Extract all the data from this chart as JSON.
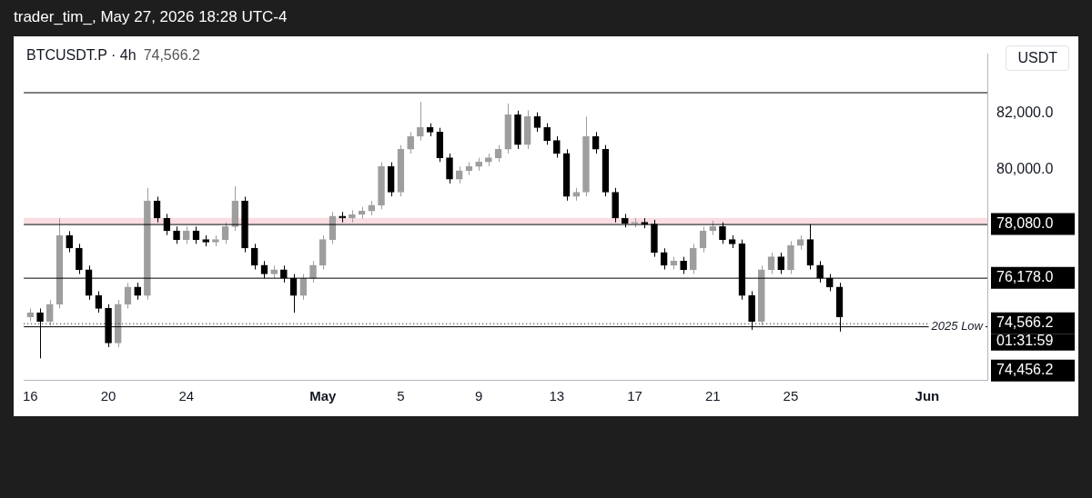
{
  "chart_data": {
    "type": "candlestick",
    "title": "BTCUSDT.P · 4h",
    "subtitle": "74,566.2",
    "ylabel": "USDT",
    "annotations": [
      "trader_tim_, May 27, 2026 18:28 UTC-4",
      {
        "text": "2025 Low",
        "y": 74456.2
      },
      "01:31:59"
    ],
    "x": [
      "2026-04-16T00:00",
      "2026-04-16T12:00",
      "2026-04-17T00:00",
      "2026-04-17T12:00",
      "2026-04-18T00:00",
      "2026-04-18T12:00",
      "2026-04-19T00:00",
      "2026-04-19T12:00",
      "2026-04-20T00:00",
      "2026-04-20T12:00",
      "2026-04-21T00:00",
      "2026-04-21T12:00",
      "2026-04-22T00:00",
      "2026-04-22T12:00",
      "2026-04-23T00:00",
      "2026-04-23T12:00",
      "2026-04-24T00:00",
      "2026-04-24T12:00",
      "2026-04-25T00:00",
      "2026-04-25T12:00",
      "2026-04-26T00:00",
      "2026-04-26T12:00",
      "2026-04-27T00:00",
      "2026-04-27T12:00",
      "2026-04-28T00:00",
      "2026-04-28T12:00",
      "2026-04-29T00:00",
      "2026-04-29T12:00",
      "2026-04-30T00:00",
      "2026-04-30T12:00",
      "2026-05-01T00:00",
      "2026-05-01T12:00",
      "2026-05-02T00:00",
      "2026-05-02T12:00",
      "2026-05-03T00:00",
      "2026-05-03T12:00",
      "2026-05-04T00:00",
      "2026-05-04T12:00",
      "2026-05-05T00:00",
      "2026-05-05T12:00",
      "2026-05-06T00:00",
      "2026-05-06T12:00",
      "2026-05-07T00:00",
      "2026-05-07T12:00",
      "2026-05-08T00:00",
      "2026-05-08T12:00",
      "2026-05-09T00:00",
      "2026-05-09T12:00",
      "2026-05-10T00:00",
      "2026-05-10T12:00",
      "2026-05-11T00:00",
      "2026-05-11T12:00",
      "2026-05-12T00:00",
      "2026-05-12T12:00",
      "2026-05-13T00:00",
      "2026-05-13T12:00",
      "2026-05-14T00:00",
      "2026-05-14T12:00",
      "2026-05-15T00:00",
      "2026-05-15T12:00",
      "2026-05-16T00:00",
      "2026-05-16T12:00",
      "2026-05-17T00:00",
      "2026-05-17T12:00",
      "2026-05-18T00:00",
      "2026-05-18T12:00",
      "2026-05-19T00:00",
      "2026-05-19T12:00",
      "2026-05-20T00:00",
      "2026-05-20T12:00",
      "2026-05-21T00:00",
      "2026-05-21T12:00",
      "2026-05-22T00:00",
      "2026-05-22T12:00",
      "2026-05-23T00:00",
      "2026-05-23T12:00",
      "2026-05-24T00:00",
      "2026-05-24T12:00",
      "2026-05-25T00:00",
      "2026-05-25T12:00",
      "2026-05-26T00:00",
      "2026-05-26T12:00",
      "2026-05-27T00:00",
      "2026-05-27T12:00"
    ],
    "series": [
      {
        "colors": [
          "#9e9e9e",
          "#000000",
          "#9e9e9e",
          "#9e9e9e",
          "#000000",
          "#000000",
          "#000000",
          "#000000",
          "#000000",
          "#9e9e9e",
          "#9e9e9e",
          "#000000",
          "#9e9e9e",
          "#000000",
          "#000000",
          "#000000",
          "#9e9e9e",
          "#000000",
          "#000000",
          "#9e9e9e",
          "#9e9e9e",
          "#9e9e9e",
          "#000000",
          "#000000",
          "#000000",
          "#9e9e9e",
          "#000000",
          "#000000",
          "#9e9e9e",
          "#9e9e9e",
          "#9e9e9e",
          "#9e9e9e",
          "#000000",
          "#9e9e9e",
          "#9e9e9e",
          "#9e9e9e",
          "#9e9e9e",
          "#000000",
          "#9e9e9e",
          "#9e9e9e",
          "#9e9e9e",
          "#000000",
          "#000000",
          "#000000",
          "#9e9e9e",
          "#9e9e9e",
          "#9e9e9e",
          "#9e9e9e",
          "#9e9e9e",
          "#9e9e9e",
          "#000000",
          "#9e9e9e",
          "#000000",
          "#000000",
          "#000000",
          "#000000",
          "#9e9e9e",
          "#9e9e9e",
          "#000000",
          "#000000",
          "#000000",
          "#000000",
          "#9e9e9e",
          "#000000",
          "#000000",
          "#000000",
          "#9e9e9e",
          "#000000",
          "#9e9e9e",
          "#9e9e9e",
          "#9e9e9e",
          "#000000",
          "#000000",
          "#000000",
          "#000000",
          "#9e9e9e",
          "#9e9e9e",
          "#000000",
          "#9e9e9e",
          "#9e9e9e",
          "#000000",
          "#000000",
          "#000000",
          "#000000"
        ],
        "ohlc": [
          [
            74790,
            75090,
            74640,
            74940
          ],
          [
            74940,
            75090,
            73320,
            74630
          ],
          [
            74630,
            75390,
            74480,
            75240
          ],
          [
            75240,
            78290,
            75090,
            77680
          ],
          [
            77680,
            77830,
            77080,
            77230
          ],
          [
            77230,
            77380,
            76310,
            76460
          ],
          [
            76460,
            76610,
            75400,
            75550
          ],
          [
            75550,
            75700,
            74940,
            75090
          ],
          [
            75090,
            75240,
            73720,
            73870
          ],
          [
            73870,
            75390,
            73720,
            75240
          ],
          [
            75240,
            76000,
            75090,
            75850
          ],
          [
            75850,
            76000,
            75400,
            75550
          ],
          [
            75550,
            79360,
            75400,
            78900
          ],
          [
            78900,
            79050,
            78140,
            78290
          ],
          [
            78290,
            78440,
            77690,
            77840
          ],
          [
            77840,
            77990,
            77380,
            77530
          ],
          [
            77530,
            77990,
            77380,
            77840
          ],
          [
            77840,
            77990,
            77380,
            77530
          ],
          [
            77530,
            77680,
            77290,
            77440
          ],
          [
            77440,
            77680,
            77290,
            77530
          ],
          [
            77530,
            78140,
            77380,
            77990
          ],
          [
            77990,
            79420,
            77840,
            78900
          ],
          [
            78900,
            79050,
            77080,
            77230
          ],
          [
            77230,
            77380,
            76470,
            76620
          ],
          [
            76620,
            76770,
            76160,
            76310
          ],
          [
            76310,
            76610,
            76160,
            76460
          ],
          [
            76460,
            76610,
            76010,
            76160
          ],
          [
            76160,
            76310,
            74940,
            75550
          ],
          [
            75550,
            76310,
            75400,
            76160
          ],
          [
            76160,
            76770,
            76010,
            76620
          ],
          [
            76620,
            77680,
            76470,
            77530
          ],
          [
            77530,
            78510,
            77380,
            78360
          ],
          [
            78360,
            78510,
            78140,
            78290
          ],
          [
            78290,
            78570,
            78140,
            78420
          ],
          [
            78420,
            78690,
            78270,
            78540
          ],
          [
            78540,
            78900,
            78390,
            78750
          ],
          [
            78750,
            80270,
            78600,
            80120
          ],
          [
            80120,
            80270,
            79060,
            79210
          ],
          [
            79210,
            80880,
            79060,
            80730
          ],
          [
            80730,
            81340,
            80580,
            81190
          ],
          [
            81190,
            82410,
            81040,
            81500
          ],
          [
            81500,
            81650,
            81190,
            81340
          ],
          [
            81340,
            81490,
            80280,
            80430
          ],
          [
            80430,
            80580,
            79520,
            79670
          ],
          [
            79670,
            80120,
            79520,
            79970
          ],
          [
            79970,
            80270,
            79820,
            80120
          ],
          [
            80120,
            80430,
            79970,
            80280
          ],
          [
            80280,
            80580,
            80130,
            80430
          ],
          [
            80430,
            80880,
            80280,
            80730
          ],
          [
            80730,
            82350,
            80580,
            81950
          ],
          [
            81950,
            82100,
            80740,
            80890
          ],
          [
            80890,
            82110,
            80740,
            81890
          ],
          [
            81890,
            82040,
            81350,
            81500
          ],
          [
            81500,
            81650,
            80890,
            81040
          ],
          [
            81040,
            81190,
            80430,
            80580
          ],
          [
            80580,
            80730,
            78910,
            79060
          ],
          [
            79060,
            79360,
            78910,
            79210
          ],
          [
            79210,
            81890,
            79060,
            81190
          ],
          [
            81190,
            81340,
            80580,
            80730
          ],
          [
            80730,
            80880,
            79060,
            79210
          ],
          [
            79210,
            79360,
            78140,
            78290
          ],
          [
            78290,
            78440,
            77960,
            78110
          ],
          [
            78110,
            78290,
            77960,
            78140
          ],
          [
            78140,
            78290,
            77930,
            78080
          ],
          [
            78080,
            78230,
            76920,
            77070
          ],
          [
            77070,
            77220,
            76470,
            76620
          ],
          [
            76620,
            76920,
            76470,
            76770
          ],
          [
            76770,
            76920,
            76310,
            76460
          ],
          [
            76460,
            77380,
            76310,
            77230
          ],
          [
            77230,
            77990,
            77080,
            77840
          ],
          [
            77840,
            78200,
            77690,
            77990
          ],
          [
            77990,
            78140,
            77380,
            77530
          ],
          [
            77530,
            77680,
            77230,
            77380
          ],
          [
            77380,
            77530,
            75400,
            75550
          ],
          [
            75550,
            75700,
            74330,
            74630
          ],
          [
            74630,
            76610,
            74480,
            76460
          ],
          [
            76460,
            77070,
            76310,
            76920
          ],
          [
            76920,
            77070,
            76310,
            76460
          ],
          [
            76460,
            77470,
            76310,
            77320
          ],
          [
            77320,
            77680,
            77170,
            77530
          ],
          [
            77530,
            78080,
            76470,
            76620
          ],
          [
            76620,
            76770,
            76010,
            76160
          ],
          [
            76160,
            76310,
            75700,
            75850
          ],
          [
            75850,
            76000,
            74270,
            74790
          ]
        ]
      }
    ],
    "xlim": [
      "2026-04-15T16:00",
      "2026-06-04T02:00"
    ],
    "xticks": [
      {
        "value": "2026-04-16",
        "label": "16"
      },
      {
        "value": "2026-04-20",
        "label": "20"
      },
      {
        "value": "2026-04-24",
        "label": "24"
      },
      {
        "value": "2026-05-01",
        "label": "May"
      },
      {
        "value": "2026-05-05",
        "label": "5"
      },
      {
        "value": "2026-05-09",
        "label": "9"
      },
      {
        "value": "2026-05-13",
        "label": "13"
      },
      {
        "value": "2026-05-17",
        "label": "17"
      },
      {
        "value": "2026-05-21",
        "label": "21"
      },
      {
        "value": "2026-05-25",
        "label": "25"
      },
      {
        "value": "2026-06-01",
        "label": "Jun"
      }
    ],
    "ylim": [
      72560,
      84100
    ],
    "yticks": [
      {
        "value": 80000,
        "label": "80,000.0"
      },
      {
        "value": 82000,
        "label": "82,000.0"
      }
    ],
    "bands": [
      {
        "axis": "y",
        "from": 78080,
        "to": 78300,
        "label": null,
        "color": "#f9dde2"
      }
    ],
    "ref_lines": [
      {
        "axis": "y",
        "value": 82750,
        "label": null,
        "color": "#000000"
      },
      {
        "axis": "y",
        "value": 78080,
        "label": "78,080.0",
        "color": "#000000"
      },
      {
        "axis": "y",
        "value": 76178,
        "label": "76,178.0",
        "color": "#000000"
      },
      {
        "axis": "y",
        "value": 74566.2,
        "label": "74,566.2",
        "color": "#000000",
        "line_style": "dotted"
      },
      {
        "axis": "y",
        "value": 74456.2,
        "label": "74,456.2",
        "color": "#000000"
      }
    ],
    "legend": false
  }
}
